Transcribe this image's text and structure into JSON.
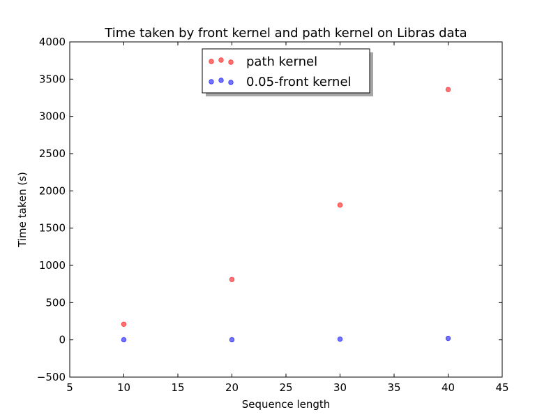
{
  "chart_data": {
    "type": "scatter",
    "title": "Time taken by front kernel and path kernel on Libras data",
    "xlabel": "Sequence length",
    "ylabel": "Time taken (s)",
    "xlim": [
      5,
      45
    ],
    "ylim": [
      -500,
      4000
    ],
    "xticks": [
      5,
      10,
      15,
      20,
      25,
      30,
      35,
      40,
      45
    ],
    "yticks": [
      -500,
      0,
      500,
      1000,
      1500,
      2000,
      2500,
      3000,
      3500,
      4000
    ],
    "xtick_labels": [
      "5",
      "10",
      "15",
      "20",
      "25",
      "30",
      "35",
      "40",
      "45"
    ],
    "ytick_labels": [
      "−500",
      "0",
      "500",
      "1000",
      "1500",
      "2000",
      "2500",
      "3000",
      "3500",
      "4000"
    ],
    "grid": false,
    "legend": {
      "location": "upper-center",
      "shadow": true
    },
    "series": [
      {
        "name": "path kernel",
        "color": "#ff0000",
        "x": [
          10,
          20,
          30,
          40
        ],
        "y": [
          210,
          810,
          1810,
          3360
        ]
      },
      {
        "name": "0.05-front kernel",
        "color": "#0000ff",
        "x": [
          10,
          20,
          30,
          40
        ],
        "y": [
          2,
          2,
          10,
          20
        ]
      }
    ]
  }
}
